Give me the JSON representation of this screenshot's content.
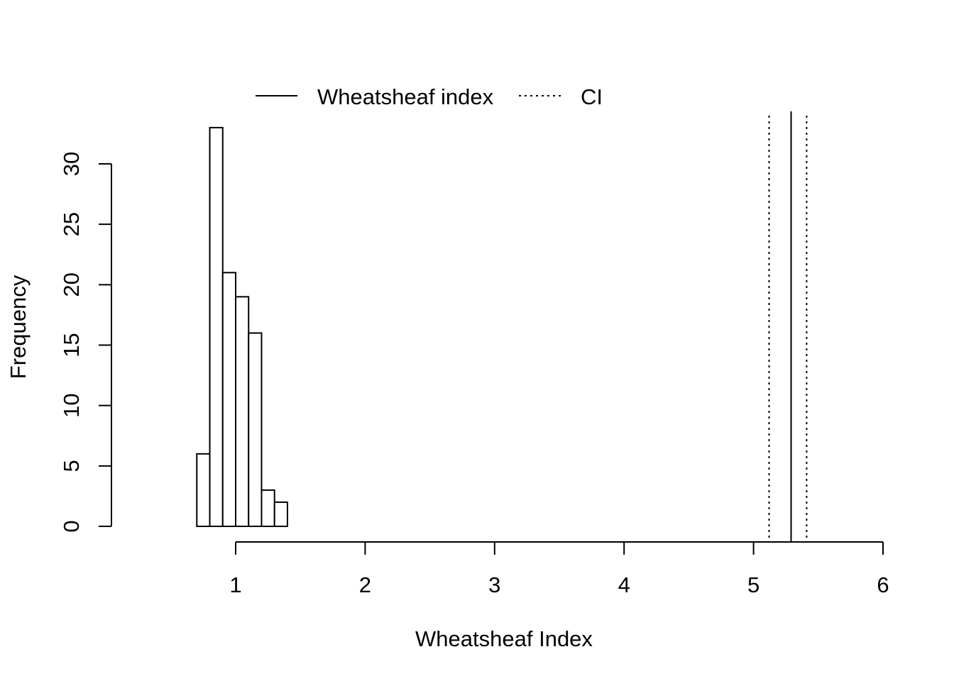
{
  "chart_data": {
    "type": "bar",
    "subtype": "histogram",
    "xlabel": "Wheatsheaf Index",
    "ylabel": "Frequency",
    "xlim": [
      1,
      6
    ],
    "ylim": [
      0,
      30
    ],
    "x_ticks": [
      "1",
      "2",
      "3",
      "4",
      "5",
      "6"
    ],
    "y_ticks": [
      "0",
      "5",
      "10",
      "15",
      "20",
      "25",
      "30"
    ],
    "bin_edges": [
      0.7,
      0.8,
      0.9,
      1.0,
      1.1,
      1.2,
      1.3,
      1.4
    ],
    "counts": [
      6,
      33,
      21,
      19,
      16,
      3,
      2
    ],
    "reference_lines": [
      {
        "name": "Wheatsheaf index",
        "value": 5.29,
        "style": "solid"
      },
      {
        "name": "CI",
        "value": 5.12,
        "style": "dotted"
      },
      {
        "name": "CI",
        "value": 5.41,
        "style": "dotted"
      }
    ],
    "legend": {
      "placement": "top",
      "entries": [
        {
          "label": "Wheatsheaf index",
          "style": "solid"
        },
        {
          "label": "CI",
          "style": "dotted"
        }
      ]
    },
    "bar_fill": "#ffffff",
    "stroke": "#000000",
    "grid": false
  }
}
